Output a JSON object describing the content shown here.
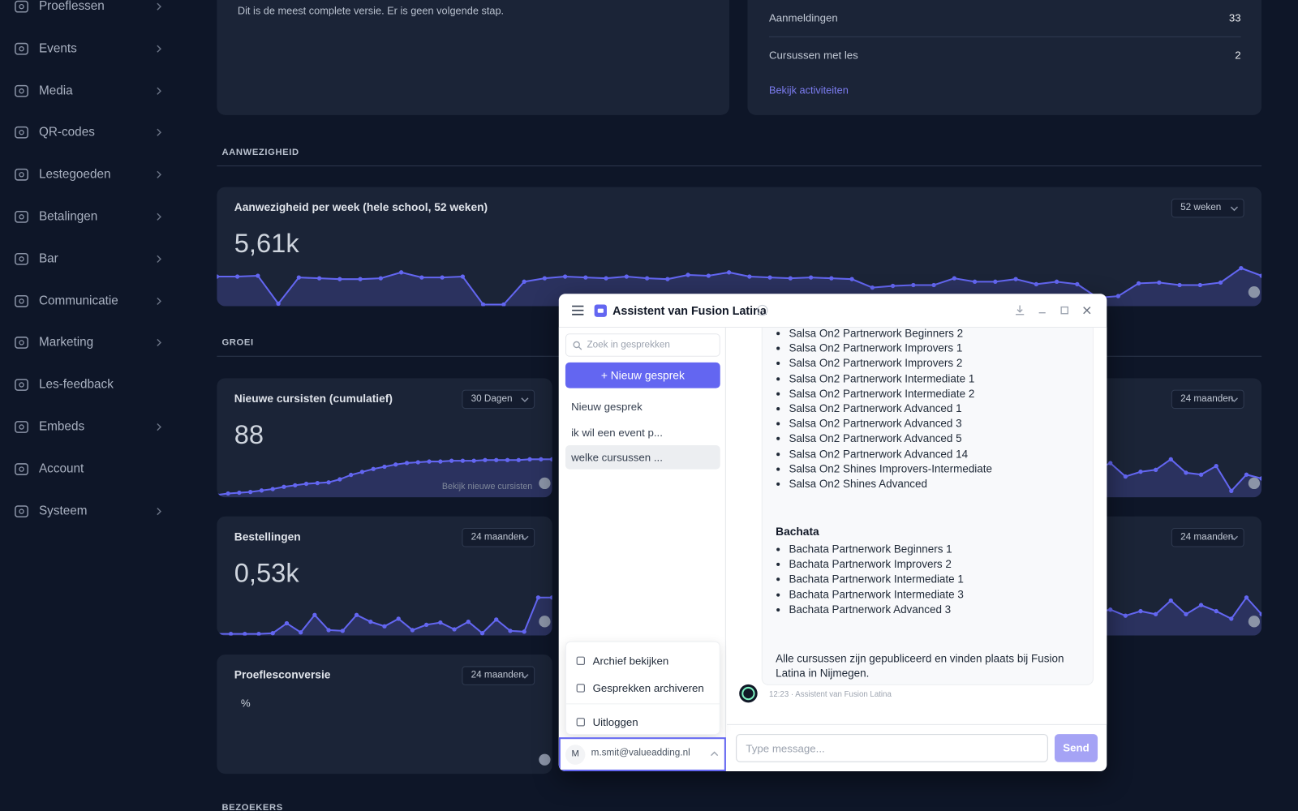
{
  "sidebar": {
    "items": [
      {
        "label": "Proeflessen",
        "submenu": true
      },
      {
        "label": "Events",
        "submenu": true
      },
      {
        "label": "Media",
        "submenu": true
      },
      {
        "label": "QR-codes",
        "submenu": true
      },
      {
        "label": "Lestegoeden",
        "submenu": true
      },
      {
        "label": "Betalingen",
        "submenu": true
      },
      {
        "label": "Bar",
        "submenu": true
      },
      {
        "label": "Communicatie",
        "submenu": true
      },
      {
        "label": "Marketing",
        "submenu": true
      },
      {
        "label": "Les-feedback",
        "submenu": false
      },
      {
        "label": "Embeds",
        "submenu": true
      },
      {
        "label": "Account",
        "submenu": false
      },
      {
        "label": "Systeem",
        "submenu": true
      }
    ]
  },
  "top_left_card": {
    "text": "Dit is de meest complete versie. Er is geen volgende stap."
  },
  "top_right_card": {
    "rows": [
      {
        "label": "Aanmeldingen",
        "value": 33
      },
      {
        "label": "Cursussen met les",
        "value": 2
      }
    ],
    "link": "Bekijk activiteiten"
  },
  "sections": [
    "AANWEZIGHEID",
    "GROEI",
    "BEZOEKERS"
  ],
  "cards": [
    {
      "title": "Aanwezigheid per week (hele school, 52 weken)",
      "value": "5,61k",
      "range": "52 weken",
      "chart_data": {
        "type": "line",
        "color": "#6366f1",
        "values": [
          33,
          33,
          34,
          1,
          32,
          31,
          30,
          30,
          31,
          38,
          32,
          32,
          33,
          0,
          0,
          27,
          31,
          33,
          32,
          31,
          33,
          31,
          30,
          35,
          34,
          38,
          33,
          32,
          31,
          32,
          31,
          30,
          20,
          22,
          23,
          23,
          31,
          27,
          27,
          30,
          24,
          27,
          24,
          8,
          10,
          25,
          26,
          23,
          23,
          26,
          43,
          34
        ]
      }
    },
    {
      "title": "Nieuwe cursisten (cumulatief)",
      "value": "88",
      "range": "30 Dagen",
      "link": "Bekijk nieuwe cursisten",
      "chart_data": {
        "type": "line",
        "color": "#6366f1",
        "values": [
          1,
          3,
          4,
          5,
          7,
          9,
          12,
          14,
          16,
          17,
          18,
          22,
          28,
          32,
          36,
          39,
          42,
          44,
          45,
          46,
          46,
          47,
          47,
          47,
          48,
          48,
          48,
          48,
          49,
          49,
          49
        ]
      }
    },
    {
      "title": "Bestellingen",
      "value": "0,53k",
      "range": "24 maanden",
      "chart_data": {
        "type": "line",
        "color": "#6366f1",
        "values": [
          0,
          0,
          0,
          0,
          1,
          14,
          2,
          25,
          5,
          4,
          25,
          16,
          10,
          20,
          5,
          12,
          15,
          6,
          16,
          1,
          19,
          4,
          3,
          48,
          48
        ]
      }
    },
    {
      "title": "Proeflesconversie",
      "value": "%",
      "range": "24 maanden"
    },
    {
      "range": "24 maanden",
      "chart_data": {
        "type": "line",
        "color": "#6366f1",
        "values": [
          22,
          25,
          20,
          28,
          30,
          24,
          26,
          22,
          27,
          29,
          31,
          25,
          23,
          28,
          30,
          26,
          24,
          29,
          27,
          25,
          28,
          30,
          26,
          27,
          34,
          20,
          25,
          27,
          38,
          24,
          22,
          31,
          5,
          22,
          18
        ]
      }
    },
    {
      "range": "24 maanden",
      "chart_data": {
        "type": "line",
        "color": "#6366f1",
        "values": [
          20,
          24,
          18,
          26,
          30,
          22,
          28,
          25,
          21,
          27,
          32,
          24,
          26,
          29,
          23,
          28,
          30,
          25,
          22,
          27,
          26,
          31,
          24,
          28,
          32,
          24,
          30,
          26,
          44,
          26,
          38,
          30,
          20,
          48,
          26
        ]
      }
    }
  ],
  "chat": {
    "title": "Assistent van Fusion Latina",
    "search_placeholder": "Zoek in gesprekken",
    "new_button": "+ Nieuw gesprek",
    "conversations": [
      "Nieuw gesprek",
      "ik wil een event p...",
      "welke cursussen ..."
    ],
    "selected": 2,
    "menu": [
      "Archief bekijken",
      "Gesprekken archiveren",
      "Uitloggen"
    ],
    "user": {
      "initial": "M",
      "email": "m.smit@valueadding.nl"
    },
    "message": {
      "salsa_items": [
        "Salsa On2 Partnerwork Beginners 2",
        "Salsa On2 Partnerwork Improvers 1",
        "Salsa On2 Partnerwork Improvers 2",
        "Salsa On2 Partnerwork Intermediate 1",
        "Salsa On2 Partnerwork Intermediate 2",
        "Salsa On2 Partnerwork Advanced 1",
        "Salsa On2 Partnerwork Advanced 3",
        "Salsa On2 Partnerwork Advanced 5",
        "Salsa On2 Partnerwork Advanced 14",
        "Salsa On2 Shines Improvers-Intermediate",
        "Salsa On2 Shines Advanced"
      ],
      "heading": "Bachata",
      "bachata_items": [
        "Bachata Partnerwork Beginners 1",
        "Bachata Partnerwork Improvers 2",
        "Bachata Partnerwork Intermediate 1",
        "Bachata Partnerwork Intermediate 3",
        "Bachata Partnerwork Advanced 3"
      ],
      "footer": "Alle cursussen zijn gepubliceerd en vinden plaats bij Fusion Latina in Nijmegen."
    },
    "timestamp": "12:23 · Assistent van Fusion Latina",
    "input_placeholder": "Type message...",
    "send": "Send"
  }
}
